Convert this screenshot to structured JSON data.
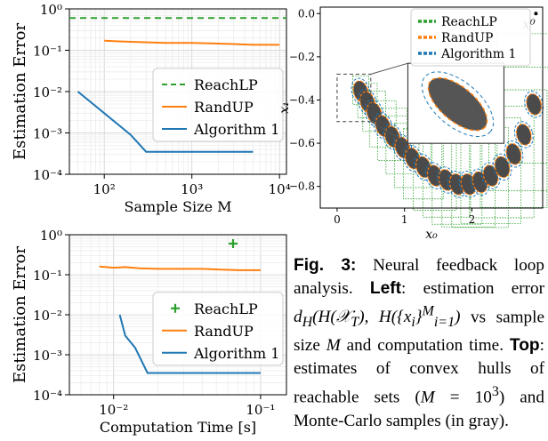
{
  "colors": {
    "reachlp": "#2ca02c",
    "randup": "#ff7f0e",
    "algorithm1": "#1f77b4",
    "samples": "#555555"
  },
  "chart_data": [
    {
      "type": "line",
      "xscale": "log",
      "yscale": "log",
      "xlabel": "Sample Size M",
      "ylabel": "Estimation Error",
      "xlim": [
        40,
        12000
      ],
      "ylim": [
        0.0001,
        1.0
      ],
      "x_ticks": [
        "10²",
        "10³",
        "10⁴"
      ],
      "y_ticks": [
        "10⁻⁴",
        "10⁻³",
        "10⁻²",
        "10⁻¹",
        "10⁰"
      ],
      "grid": true,
      "legend_position": "center-right",
      "series": [
        {
          "name": "ReachLP",
          "style": "dashed",
          "x": [
            40,
            12000
          ],
          "y": [
            0.6,
            0.6
          ]
        },
        {
          "name": "RandUP",
          "style": "solid",
          "x": [
            100,
            200,
            500,
            1000,
            2000,
            5000,
            10000
          ],
          "y": [
            0.17,
            0.16,
            0.15,
            0.15,
            0.145,
            0.135,
            0.135
          ]
        },
        {
          "name": "Algorithm 1",
          "style": "solid",
          "x": [
            50,
            100,
            200,
            300,
            1000,
            2000,
            5000
          ],
          "y": [
            0.01,
            0.003,
            0.0009,
            0.00035,
            0.00035,
            0.00035,
            0.00035
          ]
        }
      ]
    },
    {
      "type": "line",
      "xscale": "log",
      "yscale": "log",
      "xlabel": "Computation Time [s]",
      "ylabel": "Estimation Error",
      "xlim": [
        0.005,
        0.15
      ],
      "ylim": [
        0.0001,
        1.0
      ],
      "x_ticks": [
        "10⁻²",
        "10⁻¹"
      ],
      "y_ticks": [
        "10⁻⁴",
        "10⁻³",
        "10⁻²",
        "10⁻¹",
        "10⁰"
      ],
      "grid": true,
      "legend_position": "center-right",
      "series": [
        {
          "name": "ReachLP",
          "style": "marker",
          "x": [
            0.065
          ],
          "y": [
            0.6
          ]
        },
        {
          "name": "RandUP",
          "style": "solid",
          "x": [
            0.008,
            0.01,
            0.012,
            0.015,
            0.02,
            0.04,
            0.07,
            0.1
          ],
          "y": [
            0.16,
            0.15,
            0.155,
            0.145,
            0.14,
            0.14,
            0.13,
            0.13
          ]
        },
        {
          "name": "Algorithm 1",
          "style": "solid",
          "x": [
            0.011,
            0.012,
            0.014,
            0.017,
            0.025,
            0.05,
            0.1
          ],
          "y": [
            0.01,
            0.003,
            0.0015,
            0.00035,
            0.00035,
            0.00035,
            0.00035
          ]
        }
      ]
    },
    {
      "type": "scatter",
      "xlabel": "x₀",
      "ylabel": "x₁",
      "xlim": [
        -0.25,
        3.05
      ],
      "ylim": [
        -0.9,
        0.03
      ],
      "x_ticks": [
        "0",
        "1",
        "2"
      ],
      "y_ticks": [
        "0.0",
        "−0.2",
        "−0.4",
        "−0.6",
        "−0.8"
      ],
      "grid": false,
      "legend_position": "top-right",
      "annotation": "x⁰",
      "series": [
        {
          "name": "ReachLP",
          "style": "dotted-boxes"
        },
        {
          "name": "RandUP",
          "style": "dashed-hulls"
        },
        {
          "name": "Algorithm 1",
          "style": "dashed-hulls"
        }
      ],
      "sample_clusters": {
        "x": [
          0.35,
          0.45,
          0.55,
          0.68,
          0.82,
          0.97,
          1.12,
          1.28,
          1.45,
          1.62,
          1.78,
          1.95,
          2.12,
          2.28,
          2.45,
          2.62,
          2.77,
          2.92
        ],
        "y": [
          -0.36,
          -0.41,
          -0.46,
          -0.52,
          -0.57,
          -0.62,
          -0.67,
          -0.71,
          -0.75,
          -0.77,
          -0.79,
          -0.79,
          -0.78,
          -0.75,
          -0.71,
          -0.65,
          -0.56,
          -0.42
        ]
      }
    }
  ],
  "legend": {
    "reachlp": "ReachLP",
    "randup": "RandUP",
    "algorithm1": "Algorithm 1"
  },
  "caption": {
    "fig_label": "Fig. 3:",
    "t1": " Neural feedback loop analysis. ",
    "left": "Left",
    "t2": ": estimation error ",
    "t3": " vs sample size ",
    "t4": " and computation time. ",
    "top": "Top",
    "t5": ": estimates of convex hulls of reachable sets (",
    "t6": ") and Monte-Carlo samples (in gray)."
  }
}
